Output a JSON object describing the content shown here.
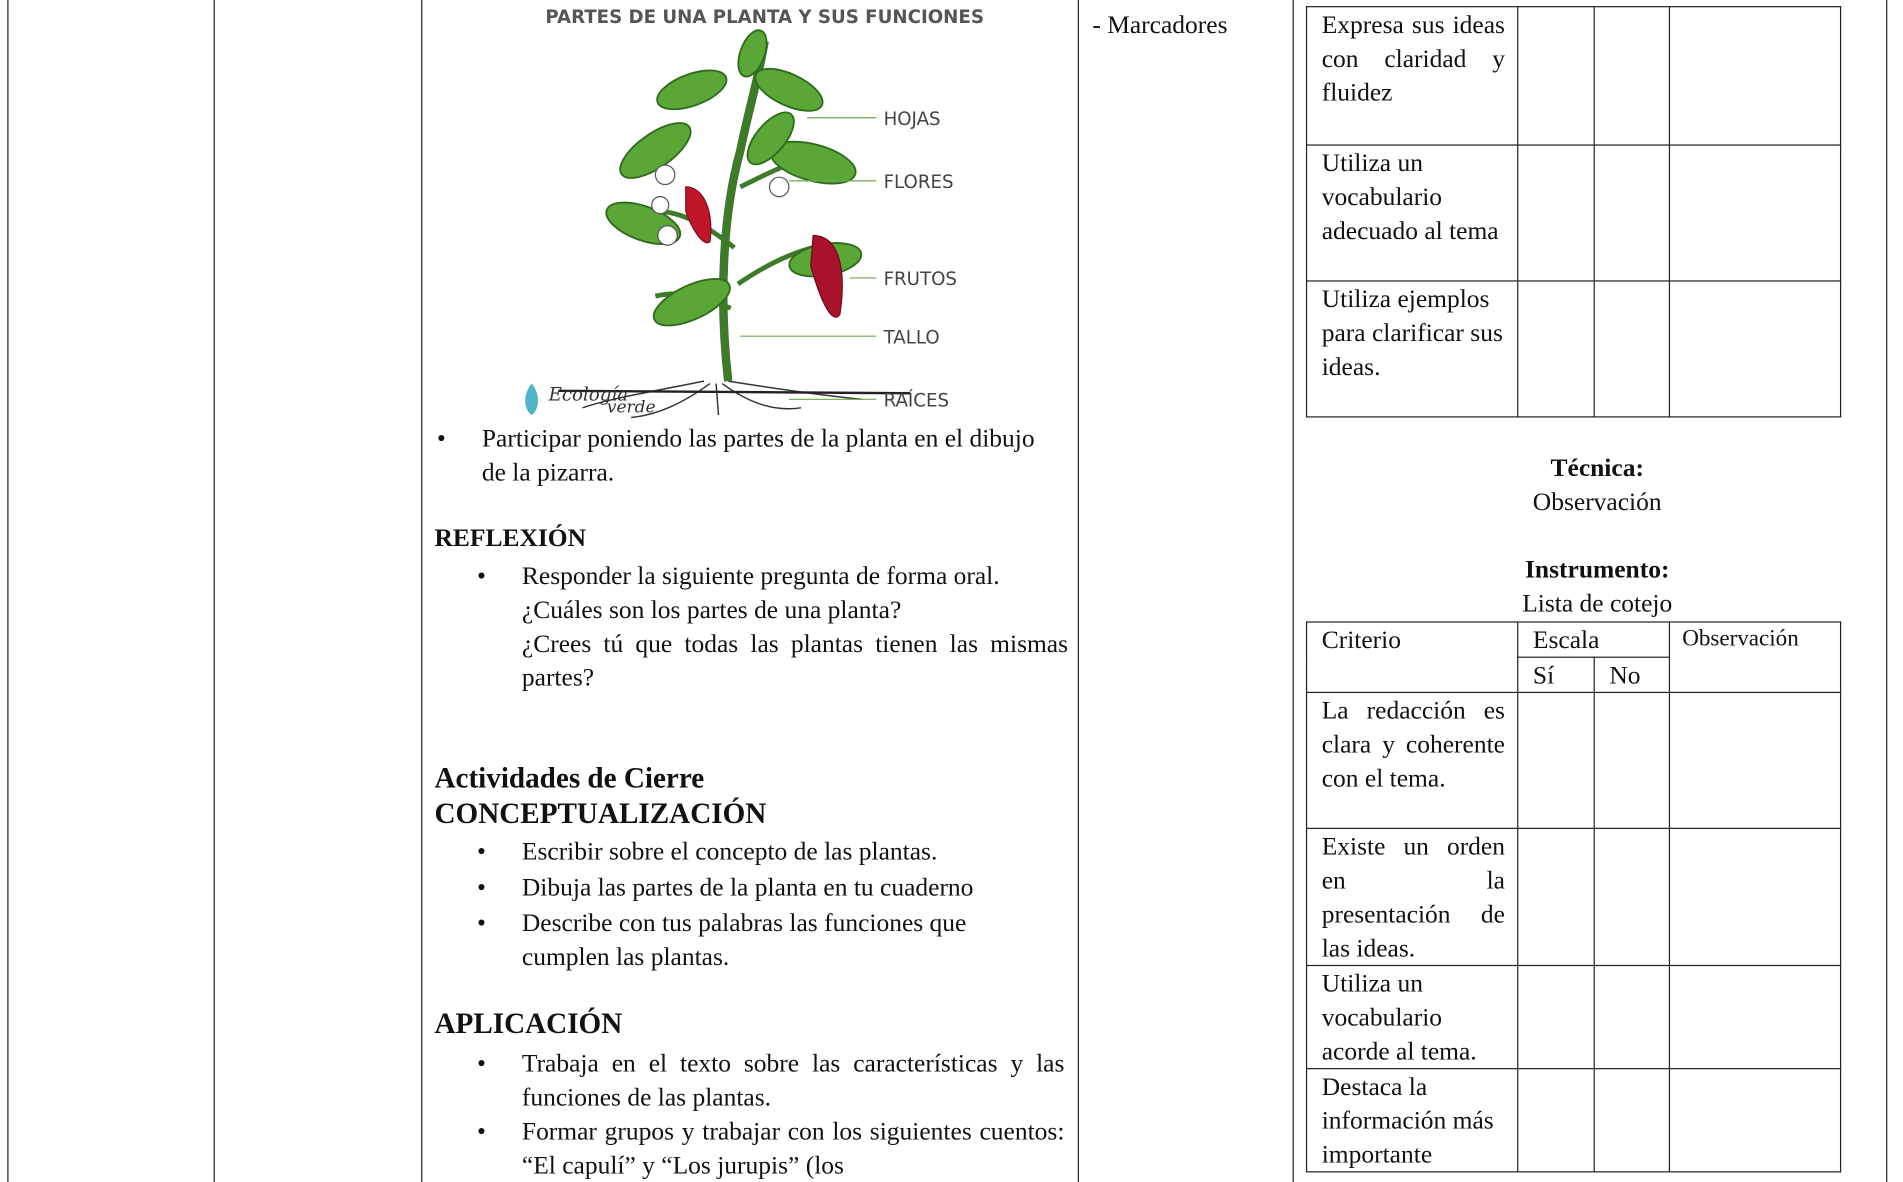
{
  "figure": {
    "title": "PARTES DE UNA PLANTA Y SUS FUNCIONES",
    "labels": [
      "HOJAS",
      "FLORES",
      "FRUTOS",
      "TALLO",
      "RAÍCES"
    ],
    "logo": [
      "Ecología",
      "verde"
    ]
  },
  "activities": {
    "item1": "Participar poniendo las partes de la planta en el dibujo de la pizarra.",
    "reflection_title": "REFLEXIÓN",
    "reflection": [
      "Responder la siguiente pregunta de forma oral.",
      "¿Cuáles son los partes de una planta?",
      "¿Crees tú que todas las plantas tienen las mismas partes?"
    ],
    "closing_title": "Actividades de Cierre",
    "conceptualization_title": "CONCEPTUALIZACIÓN",
    "conceptualization": [
      "Escribir sobre el concepto de las plantas.",
      "Dibuja las partes de la planta en tu cuaderno",
      "Describe con tus palabras las funciones que cumplen las plantas."
    ],
    "application_title": "APLICACIÓN",
    "application": [
      "Trabaja en el texto sobre las características y las funciones de las plantas.",
      "Formar grupos y trabajar con los siguientes cuentos: “El capulí” y “Los jurupis” (los"
    ]
  },
  "resources": [
    "- Marcadores"
  ],
  "evaluation": {
    "table1_rows": [
      "Expresa sus ideas con claridad y fluidez",
      "Utiliza un vocabulario adecuado al tema",
      "Utiliza ejemplos para clarificar sus ideas."
    ],
    "technique_label": "Técnica:",
    "technique": "Observación",
    "instrument_label": "Instrumento:",
    "instrument": "Lista de cotejo",
    "table2": {
      "headers": [
        "Criterio",
        "Escala",
        "Observación"
      ],
      "scale": [
        "Sí",
        "No"
      ],
      "rows": [
        "La redacción es clara y coherente con el tema.",
        "Existe un orden en la presentación de las ideas.",
        "Utiliza un vocabulario acorde al tema.",
        "Destaca la información más importante"
      ]
    }
  }
}
